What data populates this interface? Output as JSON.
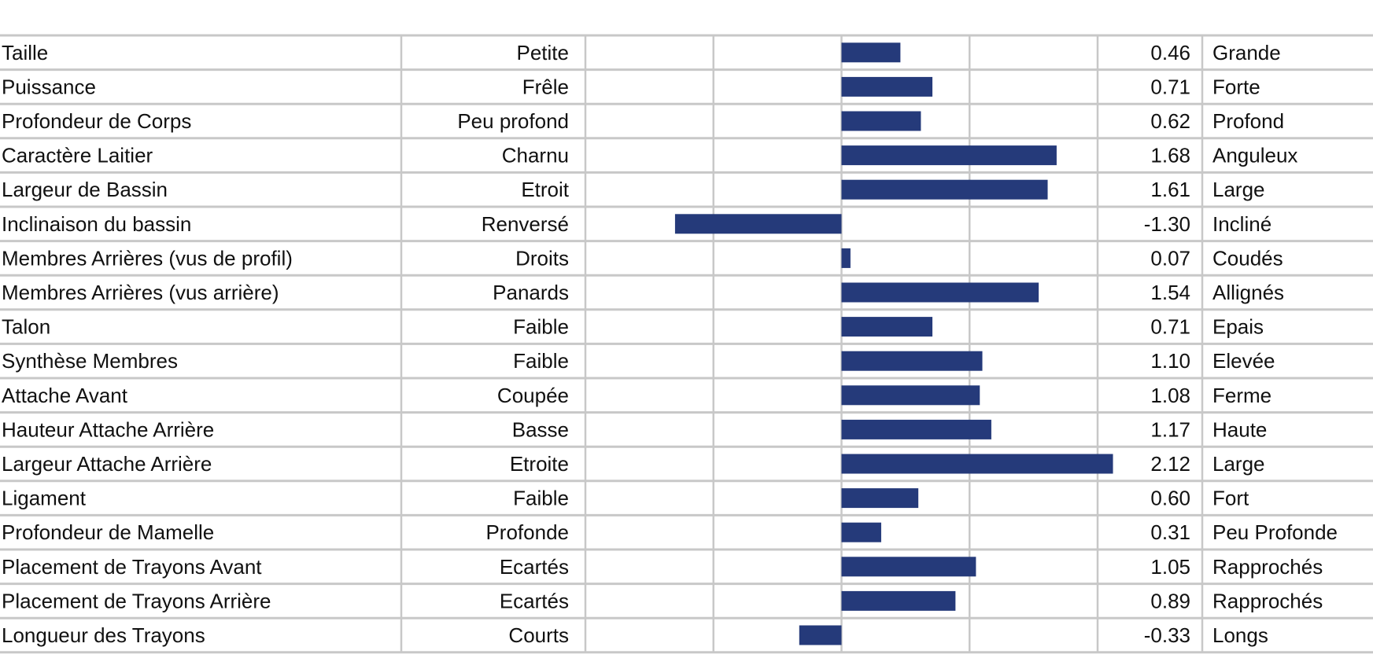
{
  "chart_data": {
    "type": "bar",
    "orientation": "horizontal",
    "xlim": [
      -2.0,
      2.0
    ],
    "grid": true,
    "bar_color": "#253a7a",
    "grid_color": "#c8c8c8",
    "rows": [
      {
        "trait": "Taille",
        "low": "Petite",
        "value": 0.46,
        "value_label": "0.46",
        "high": "Grande"
      },
      {
        "trait": "Puissance",
        "low": "Frêle",
        "value": 0.71,
        "value_label": "0.71",
        "high": "Forte"
      },
      {
        "trait": "Profondeur de Corps",
        "low": "Peu profond",
        "value": 0.62,
        "value_label": "0.62",
        "high": "Profond"
      },
      {
        "trait": "Caractère Laitier",
        "low": "Charnu",
        "value": 1.68,
        "value_label": "1.68",
        "high": "Anguleux"
      },
      {
        "trait": "Largeur de Bassin",
        "low": "Etroit",
        "value": 1.61,
        "value_label": "1.61",
        "high": "Large"
      },
      {
        "trait": "Inclinaison du bassin",
        "low": "Renversé",
        "value": -1.3,
        "value_label": "-1.30",
        "high": "Incliné"
      },
      {
        "trait": "Membres Arrières (vus de profil)",
        "low": "Droits",
        "value": 0.07,
        "value_label": "0.07",
        "high": "Coudés"
      },
      {
        "trait": "Membres Arrières (vus arrière)",
        "low": "Panards",
        "value": 1.54,
        "value_label": "1.54",
        "high": "Allignés"
      },
      {
        "trait": "Talon",
        "low": "Faible",
        "value": 0.71,
        "value_label": "0.71",
        "high": "Epais"
      },
      {
        "trait": "Synthèse Membres",
        "low": "Faible",
        "value": 1.1,
        "value_label": "1.10",
        "high": "Elevée"
      },
      {
        "trait": "Attache Avant",
        "low": "Coupée",
        "value": 1.08,
        "value_label": "1.08",
        "high": "Ferme"
      },
      {
        "trait": "Hauteur Attache Arrière",
        "low": "Basse",
        "value": 1.17,
        "value_label": "1.17",
        "high": "Haute"
      },
      {
        "trait": "Largeur Attache Arrière",
        "low": "Etroite",
        "value": 2.12,
        "value_label": "2.12",
        "high": "Large"
      },
      {
        "trait": "Ligament",
        "low": "Faible",
        "value": 0.6,
        "value_label": "0.60",
        "high": "Fort"
      },
      {
        "trait": "Profondeur de Mamelle",
        "low": "Profonde",
        "value": 0.31,
        "value_label": "0.31",
        "high": "Peu Profonde"
      },
      {
        "trait": "Placement de Trayons Avant",
        "low": "Ecartés",
        "value": 1.05,
        "value_label": "1.05",
        "high": "Rapprochés"
      },
      {
        "trait": "Placement de Trayons Arrière",
        "low": "Ecartés",
        "value": 0.89,
        "value_label": "0.89",
        "high": "Rapprochés"
      },
      {
        "trait": "Longueur des Trayons",
        "low": "Courts",
        "value": -0.33,
        "value_label": "-0.33",
        "high": "Longs"
      }
    ]
  }
}
